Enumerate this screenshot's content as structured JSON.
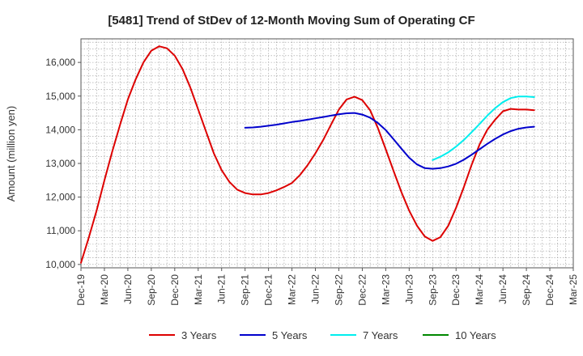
{
  "chart_data": {
    "type": "line",
    "title": "[5481]  Trend of StDev of 12-Month Moving Sum of Operating CF",
    "xlabel": "",
    "ylabel": "Amount (million yen)",
    "ylim": [
      9900,
      16700
    ],
    "yticks": [
      10000,
      11000,
      12000,
      13000,
      14000,
      15000,
      16000
    ],
    "ytick_labels": [
      "10,000",
      "11,000",
      "12,000",
      "13,000",
      "14,000",
      "15,000",
      "16,000"
    ],
    "x_range_months": [
      0,
      63
    ],
    "xtick_labels": [
      "Dec-19",
      "Mar-20",
      "Jun-20",
      "Sep-20",
      "Dec-20",
      "Mar-21",
      "Jun-21",
      "Sep-21",
      "Dec-21",
      "Mar-22",
      "Jun-22",
      "Sep-22",
      "Dec-22",
      "Mar-23",
      "Jun-23",
      "Sep-23",
      "Dec-23",
      "Mar-24",
      "Jun-24",
      "Sep-24",
      "Dec-24",
      "Mar-25"
    ],
    "grid": true,
    "legend_position": "bottom",
    "series": [
      {
        "name": "3 Years",
        "color": "#dd0000",
        "x": [
          0,
          1,
          2,
          3,
          4,
          5,
          6,
          7,
          8,
          9,
          10,
          11,
          12,
          13,
          14,
          15,
          16,
          17,
          18,
          19,
          20,
          21,
          22,
          23,
          24,
          25,
          26,
          27,
          28,
          29,
          30,
          31,
          32,
          33,
          34,
          35,
          36,
          37,
          38,
          39,
          40,
          41,
          42,
          43,
          44,
          45,
          46,
          47,
          48,
          49,
          50,
          51,
          52,
          53,
          54,
          55,
          56,
          57,
          58
        ],
        "values": [
          10050,
          10800,
          11600,
          12500,
          13350,
          14150,
          14900,
          15500,
          16000,
          16350,
          16480,
          16420,
          16200,
          15800,
          15250,
          14600,
          13950,
          13300,
          12800,
          12450,
          12220,
          12120,
          12080,
          12080,
          12120,
          12200,
          12300,
          12420,
          12650,
          12950,
          13300,
          13700,
          14150,
          14600,
          14900,
          14980,
          14880,
          14580,
          14050,
          13420,
          12780,
          12150,
          11600,
          11150,
          10830,
          10700,
          10810,
          11150,
          11680,
          12300,
          12960,
          13560,
          14000,
          14300,
          14550,
          14620,
          14600,
          14600,
          14580
        ]
      },
      {
        "name": "5 Years",
        "color": "#0000cc",
        "x": [
          21,
          22,
          23,
          24,
          25,
          26,
          27,
          28,
          29,
          30,
          31,
          32,
          33,
          34,
          35,
          36,
          37,
          38,
          39,
          40,
          41,
          42,
          43,
          44,
          45,
          46,
          47,
          48,
          49,
          50,
          51,
          52,
          53,
          54,
          55,
          56,
          57,
          58
        ],
        "values": [
          14060,
          14070,
          14090,
          14120,
          14150,
          14190,
          14230,
          14260,
          14300,
          14340,
          14380,
          14420,
          14460,
          14490,
          14500,
          14450,
          14360,
          14200,
          13990,
          13720,
          13440,
          13170,
          12970,
          12860,
          12840,
          12860,
          12910,
          12990,
          13110,
          13260,
          13420,
          13580,
          13730,
          13860,
          13960,
          14030,
          14070,
          14090
        ]
      },
      {
        "name": "7 Years",
        "color": "#00eeee",
        "x": [
          45,
          46,
          47,
          48,
          49,
          50,
          51,
          52,
          53,
          54,
          55,
          56,
          57,
          58
        ],
        "values": [
          13100,
          13200,
          13330,
          13500,
          13700,
          13930,
          14170,
          14420,
          14640,
          14820,
          14940,
          14990,
          14990,
          14970
        ]
      },
      {
        "name": "10 Years",
        "color": "#008800",
        "x": [],
        "values": []
      }
    ]
  }
}
